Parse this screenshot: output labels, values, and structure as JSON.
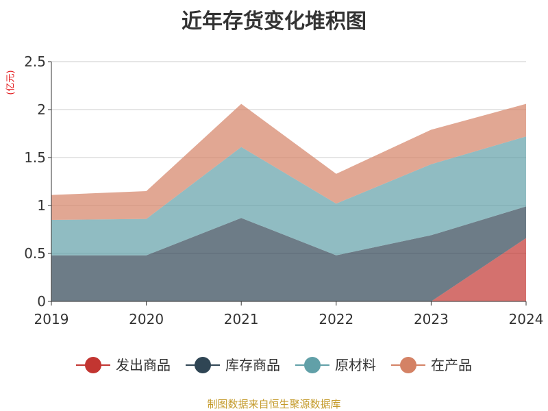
{
  "title": "近年存货变化堆积图",
  "unit_label": "(亿元)",
  "footer": "制图数据来自恒生聚源数据库",
  "colors": {
    "footer": "#c49a2a",
    "unit": "#e3171a"
  },
  "chart_data": {
    "type": "area",
    "stacked": true,
    "x": [
      "2019",
      "2020",
      "2021",
      "2022",
      "2023",
      "2024"
    ],
    "ylim": [
      0,
      2.5
    ],
    "yticks": [
      0,
      0.5,
      1,
      1.5,
      2,
      2.5
    ],
    "ytick_labels": [
      "0",
      "0.5",
      "1",
      "1.5",
      "2",
      "2.5"
    ],
    "grid": true,
    "legend_position": "bottom",
    "series": [
      {
        "name": "发出商品",
        "color": "#c23531",
        "values": [
          0,
          0,
          0,
          0,
          0,
          0.66
        ]
      },
      {
        "name": "库存商品",
        "color": "#2f4554",
        "values": [
          0.48,
          0.48,
          0.87,
          0.48,
          0.69,
          0.33
        ]
      },
      {
        "name": "原材料",
        "color": "#61a0a8",
        "values": [
          0.37,
          0.38,
          0.74,
          0.54,
          0.74,
          0.73
        ]
      },
      {
        "name": "在产品",
        "color": "#d48265",
        "values": [
          0.26,
          0.29,
          0.45,
          0.31,
          0.36,
          0.34
        ]
      }
    ]
  }
}
